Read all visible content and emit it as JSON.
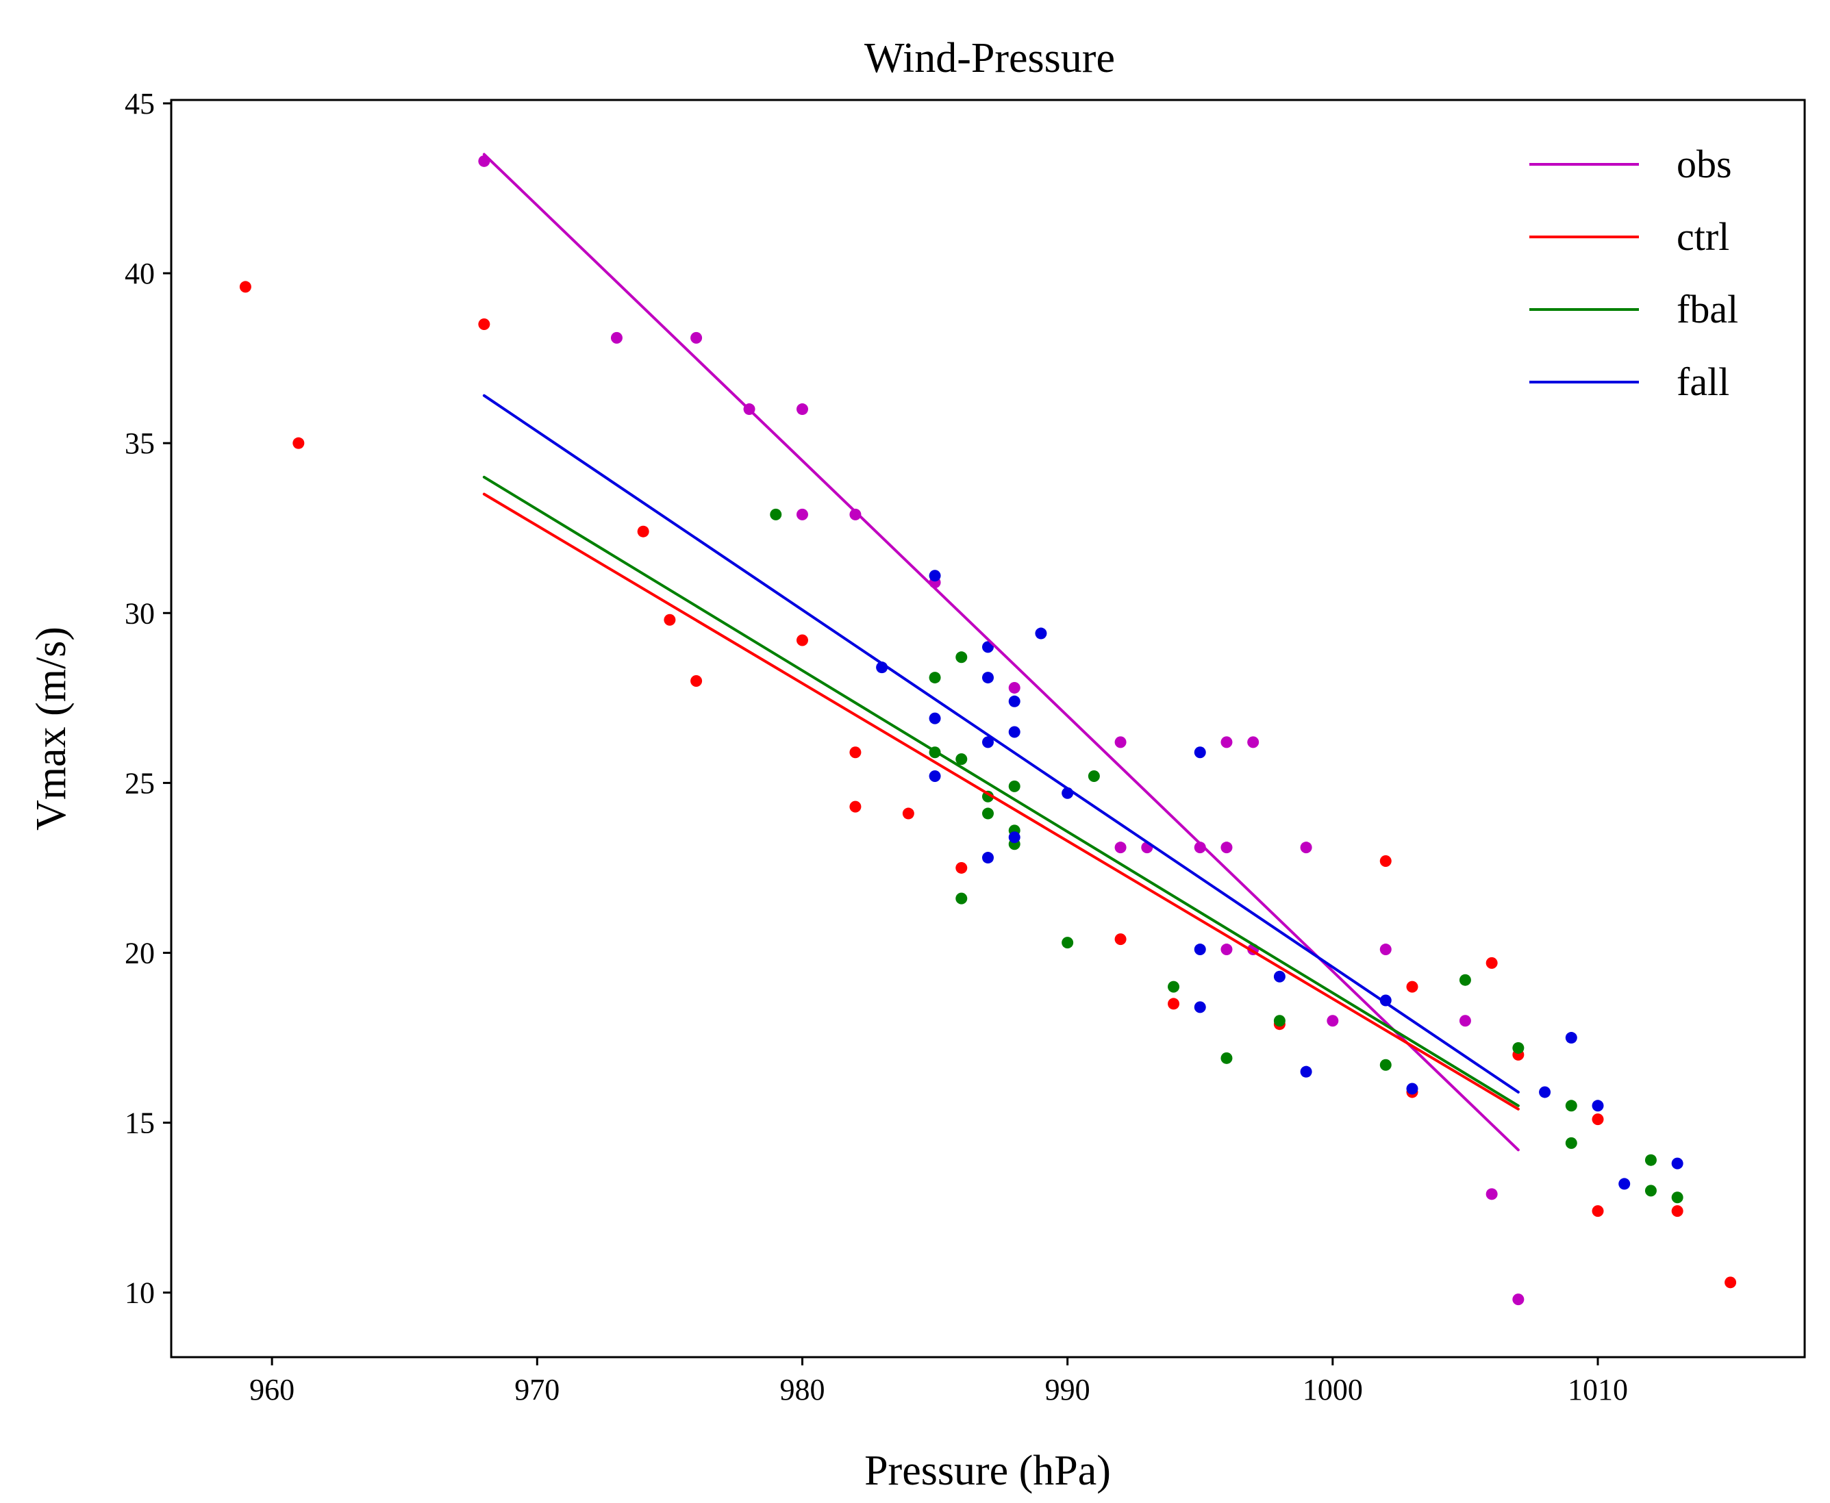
{
  "chart_data": {
    "type": "scatter",
    "title": "Wind-Pressure",
    "xlabel": "Pressure (hPa)",
    "ylabel": "Vmax (m/s)",
    "xlim": [
      956.2,
      1017.8
    ],
    "ylim": [
      8.1,
      45.1
    ],
    "xticks": [
      960,
      970,
      980,
      990,
      1000,
      1010
    ],
    "yticks": [
      10,
      15,
      20,
      25,
      30,
      35,
      40,
      45
    ],
    "legend_position": "top-right",
    "series": [
      {
        "name": "obs",
        "color": "#c000c0",
        "fit": {
          "x": [
            968,
            1007
          ],
          "y": [
            43.5,
            14.2
          ]
        },
        "points": [
          [
            968,
            43.3
          ],
          [
            973,
            38.1
          ],
          [
            976,
            38.1
          ],
          [
            978,
            36.0
          ],
          [
            980,
            36.0
          ],
          [
            980,
            32.9
          ],
          [
            982,
            32.9
          ],
          [
            985,
            30.9
          ],
          [
            988,
            27.8
          ],
          [
            992,
            26.2
          ],
          [
            992,
            23.1
          ],
          [
            993,
            23.1
          ],
          [
            995,
            23.1
          ],
          [
            996,
            26.2
          ],
          [
            997,
            26.2
          ],
          [
            996,
            23.1
          ],
          [
            996,
            20.1
          ],
          [
            997,
            20.1
          ],
          [
            999,
            23.1
          ],
          [
            1000,
            18.0
          ],
          [
            1002,
            20.1
          ],
          [
            1005,
            18.0
          ],
          [
            1006,
            12.9
          ],
          [
            1007,
            9.8
          ]
        ]
      },
      {
        "name": "ctrl",
        "color": "#ff0000",
        "fit": {
          "x": [
            968,
            1007
          ],
          "y": [
            33.5,
            15.4
          ]
        },
        "points": [
          [
            959,
            39.6
          ],
          [
            961,
            35.0
          ],
          [
            968,
            38.5
          ],
          [
            974,
            32.4
          ],
          [
            975,
            29.8
          ],
          [
            976,
            28.0
          ],
          [
            980,
            29.2
          ],
          [
            982,
            25.9
          ],
          [
            982,
            24.3
          ],
          [
            984,
            24.1
          ],
          [
            986,
            22.5
          ],
          [
            992,
            20.4
          ],
          [
            994,
            18.5
          ],
          [
            998,
            17.9
          ],
          [
            1002,
            22.7
          ],
          [
            1003,
            19.0
          ],
          [
            1003,
            15.9
          ],
          [
            1006,
            19.7
          ],
          [
            1007,
            17.0
          ],
          [
            1010,
            15.1
          ],
          [
            1010,
            12.4
          ],
          [
            1013,
            12.4
          ],
          [
            1015,
            10.3
          ]
        ]
      },
      {
        "name": "fbal",
        "color": "#008000",
        "fit": {
          "x": [
            968,
            1007
          ],
          "y": [
            34.0,
            15.5
          ]
        },
        "points": [
          [
            979,
            32.9
          ],
          [
            985,
            28.1
          ],
          [
            985,
            25.9
          ],
          [
            986,
            28.7
          ],
          [
            986,
            25.7
          ],
          [
            986,
            21.6
          ],
          [
            987,
            24.6
          ],
          [
            987,
            24.1
          ],
          [
            988,
            24.9
          ],
          [
            988,
            23.6
          ],
          [
            988,
            23.2
          ],
          [
            990,
            20.3
          ],
          [
            991,
            25.2
          ],
          [
            994,
            19.0
          ],
          [
            996,
            16.9
          ],
          [
            998,
            18.0
          ],
          [
            1002,
            16.7
          ],
          [
            1005,
            19.2
          ],
          [
            1007,
            17.2
          ],
          [
            1009,
            15.5
          ],
          [
            1009,
            14.4
          ],
          [
            1012,
            13.9
          ],
          [
            1012,
            13.0
          ],
          [
            1013,
            12.8
          ]
        ]
      },
      {
        "name": "fall",
        "color": "#0000e0",
        "fit": {
          "x": [
            968,
            1007
          ],
          "y": [
            36.4,
            15.9
          ]
        },
        "points": [
          [
            983,
            28.4
          ],
          [
            985,
            31.1
          ],
          [
            985,
            26.9
          ],
          [
            985,
            25.2
          ],
          [
            987,
            29.0
          ],
          [
            987,
            28.1
          ],
          [
            987,
            26.2
          ],
          [
            987,
            22.8
          ],
          [
            988,
            27.4
          ],
          [
            988,
            26.5
          ],
          [
            988,
            23.4
          ],
          [
            989,
            29.4
          ],
          [
            990,
            24.7
          ],
          [
            995,
            25.9
          ],
          [
            995,
            20.1
          ],
          [
            995,
            18.4
          ],
          [
            998,
            19.3
          ],
          [
            999,
            16.5
          ],
          [
            1002,
            18.6
          ],
          [
            1003,
            16.0
          ],
          [
            1008,
            15.9
          ],
          [
            1009,
            17.5
          ],
          [
            1010,
            15.5
          ],
          [
            1011,
            13.2
          ],
          [
            1013,
            13.8
          ]
        ]
      }
    ]
  }
}
